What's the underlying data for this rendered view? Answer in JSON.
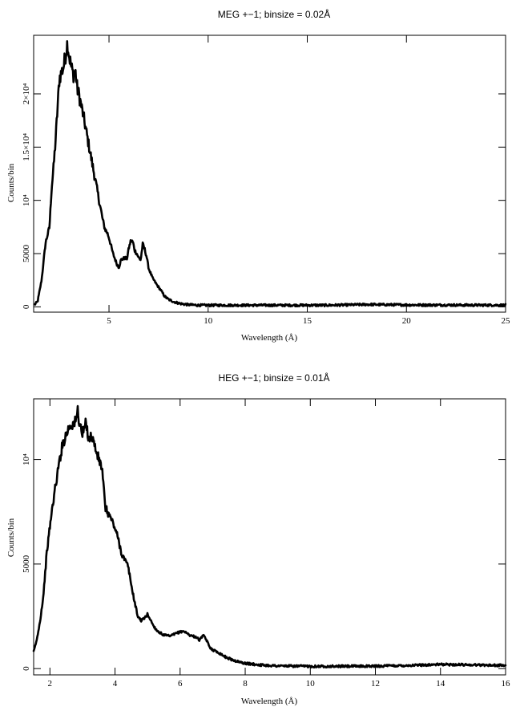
{
  "chart_data": [
    {
      "type": "line",
      "title": "MEG +−1; binsize = 0.02Å",
      "xlabel": "Wavelength (Å)",
      "ylabel": "Counts/bin",
      "xlim": [
        1.2,
        25
      ],
      "ylim": [
        -500,
        25500
      ],
      "x_ticks": [
        {
          "value": 5,
          "label": "5"
        },
        {
          "value": 10,
          "label": "10"
        },
        {
          "value": 15,
          "label": "15"
        },
        {
          "value": 20,
          "label": "20"
        },
        {
          "value": 25,
          "label": "25"
        }
      ],
      "y_ticks": [
        {
          "value": 0,
          "label": "0"
        },
        {
          "value": 5000,
          "label": "5000"
        },
        {
          "value": 10000,
          "label": "10⁴"
        },
        {
          "value": 15000,
          "label": "1.5×10⁴"
        },
        {
          "value": 20000,
          "label": "2×10⁴"
        }
      ],
      "noise": 0.035,
      "series": [
        {
          "x": [
            1.25,
            1.4,
            1.6,
            1.8,
            2.0,
            2.1,
            2.2,
            2.3,
            2.4,
            2.5,
            2.6,
            2.7,
            2.8,
            2.9,
            3.0,
            3.1,
            3.2,
            3.3,
            3.4,
            3.5,
            3.7,
            3.9,
            4.1,
            4.3,
            4.5,
            4.7,
            4.8,
            4.9,
            5.0,
            5.2,
            5.4,
            5.5,
            5.6,
            5.8,
            5.9,
            6.0,
            6.1,
            6.2,
            6.3,
            6.4,
            6.5,
            6.6,
            6.7,
            6.8,
            6.9,
            7.0,
            7.2,
            7.4,
            7.6,
            7.8,
            8.0,
            8.3,
            8.6,
            9.0,
            9.5,
            10,
            11,
            12,
            13,
            14,
            15,
            16,
            17,
            18,
            19,
            20,
            21,
            22,
            23,
            24,
            25
          ],
          "y": [
            200,
            500,
            2500,
            6000,
            7500,
            11000,
            13000,
            15500,
            18500,
            21500,
            22000,
            22500,
            23500,
            24800,
            23500,
            22500,
            21800,
            22200,
            20500,
            19800,
            18000,
            16000,
            14000,
            12000,
            10000,
            8000,
            7300,
            7000,
            6500,
            5000,
            4000,
            3700,
            4400,
            4600,
            4500,
            5500,
            6200,
            6100,
            5300,
            5000,
            4600,
            4400,
            5900,
            5400,
            4700,
            3600,
            2700,
            2100,
            1600,
            1000,
            700,
            450,
            300,
            200,
            150,
            150,
            150,
            150,
            150,
            150,
            150,
            150,
            180,
            220,
            200,
            180,
            170,
            170,
            160,
            160,
            160
          ]
        }
      ]
    },
    {
      "type": "line",
      "title": "HEG +−1; binsize = 0.01Å",
      "xlabel": "Wavelength (Å)",
      "ylabel": "Counts/bin",
      "xlim": [
        1.5,
        16
      ],
      "ylim": [
        -300,
        12900
      ],
      "x_ticks": [
        {
          "value": 2,
          "label": "2"
        },
        {
          "value": 4,
          "label": "4"
        },
        {
          "value": 6,
          "label": "6"
        },
        {
          "value": 8,
          "label": "8"
        },
        {
          "value": 10,
          "label": "10"
        },
        {
          "value": 12,
          "label": "12"
        },
        {
          "value": 14,
          "label": "14"
        },
        {
          "value": 16,
          "label": "16"
        }
      ],
      "y_ticks": [
        {
          "value": 0,
          "label": "0"
        },
        {
          "value": 5000,
          "label": "5000"
        },
        {
          "value": 10000,
          "label": "10⁴"
        }
      ],
      "noise": 0.025,
      "series": [
        {
          "x": [
            1.5,
            1.6,
            1.7,
            1.8,
            1.9,
            2.0,
            2.1,
            2.2,
            2.3,
            2.4,
            2.5,
            2.6,
            2.7,
            2.8,
            2.85,
            2.9,
            3.0,
            3.1,
            3.2,
            3.3,
            3.4,
            3.5,
            3.6,
            3.7,
            3.8,
            3.9,
            4.0,
            4.1,
            4.2,
            4.4,
            4.5,
            4.6,
            4.7,
            4.8,
            4.9,
            5.0,
            5.1,
            5.2,
            5.3,
            5.5,
            5.7,
            5.9,
            6.1,
            6.3,
            6.5,
            6.6,
            6.7,
            6.8,
            6.9,
            7.0,
            7.2,
            7.4,
            7.6,
            7.8,
            8.0,
            8.5,
            9.0,
            10,
            11,
            12,
            13,
            14,
            15,
            16
          ],
          "y": [
            800,
            1400,
            2300,
            3500,
            5500,
            6800,
            8000,
            9000,
            10000,
            10800,
            11200,
            11600,
            11700,
            11800,
            12400,
            11800,
            11200,
            11700,
            11000,
            11100,
            10500,
            10000,
            9600,
            7700,
            7400,
            7100,
            6700,
            6200,
            5500,
            4900,
            4000,
            3200,
            2500,
            2300,
            2400,
            2600,
            2300,
            2000,
            1800,
            1600,
            1550,
            1700,
            1800,
            1600,
            1500,
            1350,
            1600,
            1400,
            1050,
            900,
            750,
            550,
            420,
            320,
            250,
            170,
            130,
            110,
            110,
            120,
            150,
            200,
            180,
            150
          ]
        }
      ]
    }
  ]
}
